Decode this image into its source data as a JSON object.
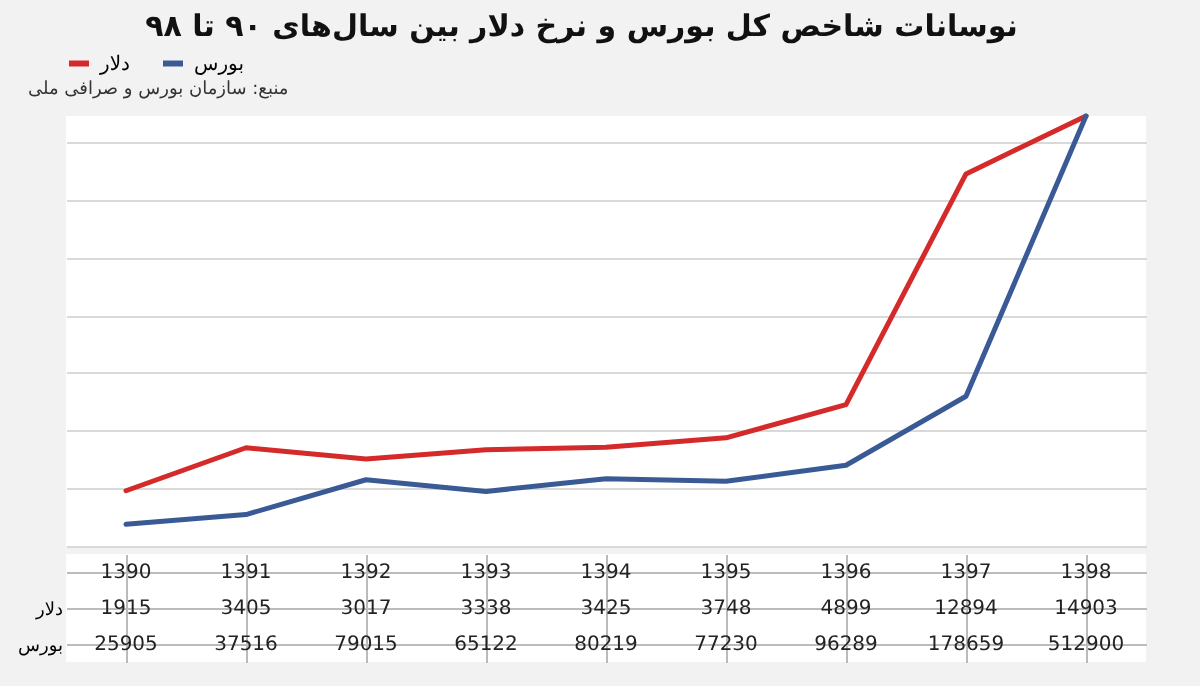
{
  "chart_data": {
    "type": "line",
    "title": "نوسانات شاخص کل بورس و نرخ دلار بین سال‌های ۹۰ تا ۹۸",
    "annotations": [
      "منبع: سازمان بورس و صرافی ملی"
    ],
    "categories": [
      "1390",
      "1391",
      "1392",
      "1393",
      "1394",
      "1395",
      "1396",
      "1397",
      "1398"
    ],
    "series": [
      {
        "name": "دلار",
        "color": "#d42a2a",
        "values": [
          1915,
          3405,
          3017,
          3338,
          3425,
          3748,
          4899,
          12894,
          14903
        ]
      },
      {
        "name": "بورس",
        "color": "#3a5a96",
        "axis": "y2",
        "values": [
          25905,
          37516,
          79015,
          65122,
          80219,
          77230,
          96289,
          178659,
          512900
        ]
      }
    ],
    "data_labels": true,
    "grid": true,
    "legend": "top",
    "line_style": "solid",
    "marker": "none"
  }
}
